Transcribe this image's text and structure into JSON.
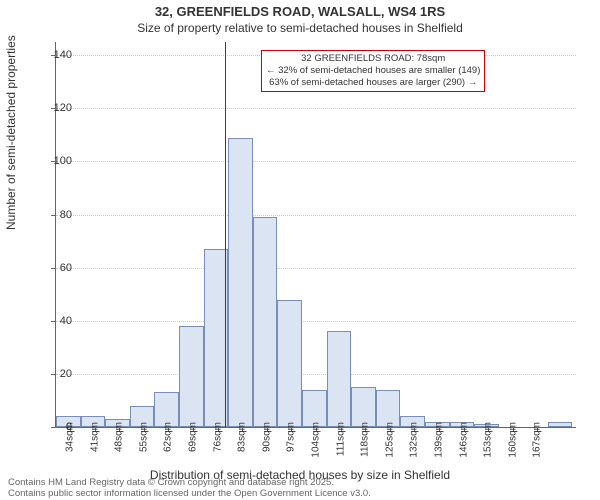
{
  "title_main": "32, GREENFIELDS ROAD, WALSALL, WS4 1RS",
  "title_sub": "Size of property relative to semi-detached houses in Shelfield",
  "ylabel": "Number of semi-detached properties",
  "xlabel": "Distribution of semi-detached houses by size in Shelfield",
  "chart": {
    "type": "histogram",
    "background_color": "#ffffff",
    "bar_fill": "#dbe4f3",
    "bar_stroke": "#7a8db5",
    "grid_color": "#cccccc",
    "axis_color": "#666666",
    "vline_color": "#cc0000",
    "vline_x": 78,
    "xlim": [
      30,
      178
    ],
    "ylim": [
      0,
      145
    ],
    "ytick_step": 20,
    "xtick_start": 34,
    "xtick_step": 7,
    "xtick_count": 20,
    "xtick_unit": "sqm",
    "bin_width": 7,
    "bin_start": 30,
    "title_fontsize": 13,
    "subtitle_fontsize": 12,
    "label_fontsize": 12,
    "tick_fontsize": 11,
    "bins": [
      {
        "x": 30,
        "count": 4
      },
      {
        "x": 37,
        "count": 4
      },
      {
        "x": 44,
        "count": 3
      },
      {
        "x": 51,
        "count": 8
      },
      {
        "x": 58,
        "count": 13
      },
      {
        "x": 65,
        "count": 38
      },
      {
        "x": 72,
        "count": 67
      },
      {
        "x": 79,
        "count": 109
      },
      {
        "x": 86,
        "count": 79
      },
      {
        "x": 93,
        "count": 48
      },
      {
        "x": 100,
        "count": 14
      },
      {
        "x": 107,
        "count": 36
      },
      {
        "x": 114,
        "count": 15
      },
      {
        "x": 121,
        "count": 14
      },
      {
        "x": 128,
        "count": 4
      },
      {
        "x": 135,
        "count": 2
      },
      {
        "x": 142,
        "count": 2
      },
      {
        "x": 149,
        "count": 1
      },
      {
        "x": 156,
        "count": 0
      },
      {
        "x": 163,
        "count": 0
      },
      {
        "x": 170,
        "count": 2
      }
    ]
  },
  "annotation": {
    "line1": "32 GREENFIELDS ROAD: 78sqm",
    "line2": "← 32% of semi-detached houses are smaller (149)",
    "line3": "63% of semi-detached houses are larger (290) →",
    "border_color": "#cc0000",
    "fontsize": 9.5
  },
  "footer": {
    "line1": "Contains HM Land Registry data © Crown copyright and database right 2025.",
    "line2": "Contains public sector information licensed under the Open Government Licence v3.0.",
    "color": "#666666",
    "fontsize": 9.5
  }
}
